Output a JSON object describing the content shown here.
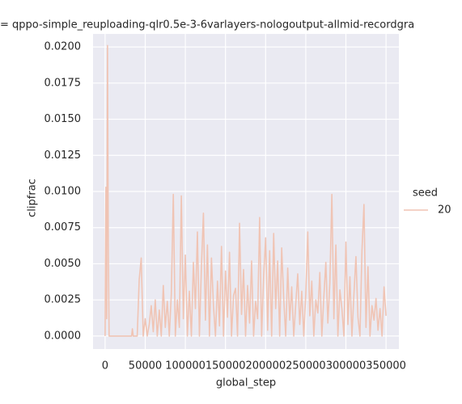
{
  "chart_data": {
    "type": "line",
    "title": "= qppo-simple_reuploading-qlr0.5e-3-6varlayers-nologoutput-allmid-recordgra",
    "xlabel": "global_step",
    "ylabel": "clipfrac",
    "legend_title": "seed",
    "legend": "right",
    "grid": true,
    "xlim": [
      -15000,
      366000
    ],
    "ylim": [
      -0.0009,
      0.0209
    ],
    "xticks": [
      0,
      50000,
      100000,
      150000,
      200000,
      250000,
      300000,
      350000
    ],
    "yticks": [
      {
        "value": 0,
        "label": "0.0000"
      },
      {
        "value": 0.0025,
        "label": "0.0025"
      },
      {
        "value": 0.005,
        "label": "0.0050"
      },
      {
        "value": 0.0075,
        "label": "0.0075"
      },
      {
        "value": 0.01,
        "label": "0.0100"
      },
      {
        "value": 0.0125,
        "label": "0.0125"
      },
      {
        "value": 0.015,
        "label": "0.0150"
      },
      {
        "value": 0.0175,
        "label": "0.0175"
      },
      {
        "value": 0.02,
        "label": "0.0200"
      }
    ],
    "x": [
      0,
      1000,
      2000,
      3000,
      4000,
      5000,
      8000,
      33000,
      34000,
      35000,
      40000,
      42500,
      45000,
      47500,
      50000,
      52500,
      55000,
      57500,
      60000,
      62500,
      65000,
      67500,
      70000,
      72500,
      75000,
      77500,
      80000,
      82500,
      85000,
      87500,
      90000,
      92500,
      95000,
      97500,
      100000,
      102500,
      105000,
      107500,
      110000,
      112500,
      115000,
      117500,
      120000,
      122500,
      125000,
      127500,
      130000,
      132500,
      135000,
      137500,
      140000,
      142500,
      145000,
      147500,
      150000,
      152500,
      155000,
      157500,
      160000,
      162500,
      165000,
      167500,
      170000,
      172500,
      175000,
      177500,
      180000,
      182500,
      185000,
      187500,
      190000,
      192500,
      195000,
      197500,
      200000,
      202500,
      205000,
      207500,
      210000,
      212500,
      215000,
      217500,
      220000,
      222500,
      225000,
      227500,
      230000,
      232500,
      235000,
      237500,
      240000,
      242500,
      245000,
      247500,
      250000,
      252500,
      255000,
      257500,
      260000,
      262500,
      265000,
      267500,
      270000,
      272500,
      275000,
      277500,
      280000,
      282500,
      285000,
      287500,
      290000,
      292500,
      295000,
      297500,
      300000,
      302500,
      305000,
      307500,
      310000,
      312500,
      315000,
      317500,
      320000,
      322500,
      325000,
      327500,
      330000,
      332500,
      335000,
      337500,
      340000,
      342500,
      345000,
      347500,
      350000
    ],
    "series": [
      {
        "name": "20",
        "color": "#f0c4b4",
        "values": [
          0.0,
          0.0103,
          0.0012,
          0.0201,
          0.0065,
          0.0,
          0.0,
          0.0,
          0.0005,
          0.0,
          0.0,
          0.0039,
          0.0054,
          0.0,
          0.0012,
          0.0,
          0.0008,
          0.0021,
          0.0003,
          0.0025,
          0.0,
          0.0018,
          0.0,
          0.0035,
          0.0006,
          0.0024,
          0.0,
          0.0029,
          0.0098,
          0.0,
          0.0025,
          0.0006,
          0.0097,
          0.0012,
          0.0056,
          0.0,
          0.0031,
          0.0,
          0.0051,
          0.0019,
          0.0072,
          0.0,
          0.0048,
          0.0085,
          0.0011,
          0.0063,
          0.0,
          0.0054,
          0.0021,
          0.0,
          0.0038,
          0.0007,
          0.0062,
          0.0,
          0.0045,
          0.0013,
          0.0058,
          0.0,
          0.0028,
          0.0033,
          0.0,
          0.0078,
          0.0015,
          0.0046,
          0.0,
          0.0035,
          0.0009,
          0.0052,
          0.0,
          0.0024,
          0.0012,
          0.0082,
          0.0,
          0.0041,
          0.0068,
          0.0004,
          0.0059,
          0.0,
          0.0071,
          0.0019,
          0.0052,
          0.0,
          0.0061,
          0.0026,
          0.0,
          0.0047,
          0.0011,
          0.0034,
          0.0,
          0.0022,
          0.0043,
          0.0008,
          0.0031,
          0.0,
          0.0029,
          0.0072,
          0.0014,
          0.0038,
          0.0,
          0.0025,
          0.0016,
          0.0044,
          0.0,
          0.0027,
          0.0051,
          0.0009,
          0.0037,
          0.0098,
          0.0012,
          0.0063,
          0.0,
          0.0032,
          0.0019,
          0.0,
          0.0065,
          0.0008,
          0.0041,
          0.0,
          0.0029,
          0.0055,
          0.0013,
          0.0,
          0.0059,
          0.0091,
          0.0006,
          0.0048,
          0.0,
          0.0021,
          0.0011,
          0.0026,
          0.0004,
          0.0019,
          0.0,
          0.0034,
          0.0014
        ]
      }
    ]
  }
}
